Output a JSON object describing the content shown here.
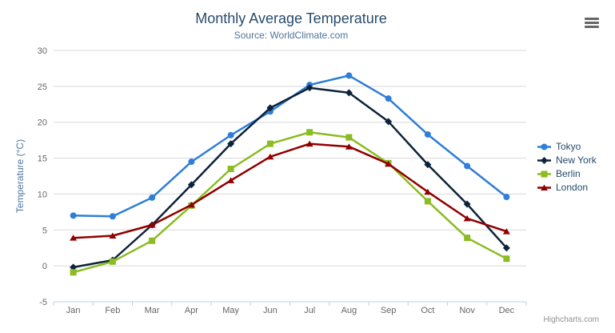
{
  "header": {
    "title": "Monthly Average Temperature",
    "subtitle": "Source: WorldClimate.com"
  },
  "credits": {
    "label": "Highcharts.com"
  },
  "context_menu": {
    "icon": "hamburger-menu-icon"
  },
  "chart_data": {
    "type": "line",
    "title": "Monthly Average Temperature",
    "subtitle": "Source: WorldClimate.com",
    "categories": [
      "Jan",
      "Feb",
      "Mar",
      "Apr",
      "May",
      "Jun",
      "Jul",
      "Aug",
      "Sep",
      "Oct",
      "Nov",
      "Dec"
    ],
    "series": [
      {
        "name": "Tokyo",
        "color": "#2f7ed8",
        "marker": "circle",
        "values": [
          7.0,
          6.9,
          9.5,
          14.5,
          18.2,
          21.5,
          25.2,
          26.5,
          23.3,
          18.3,
          13.9,
          9.6
        ]
      },
      {
        "name": "New York",
        "color": "#0d233a",
        "marker": "diamond",
        "values": [
          -0.2,
          0.8,
          5.7,
          11.3,
          17.0,
          22.0,
          24.8,
          24.1,
          20.1,
          14.1,
          8.6,
          2.5
        ]
      },
      {
        "name": "Berlin",
        "color": "#8bbc21",
        "marker": "square",
        "values": [
          -0.9,
          0.6,
          3.5,
          8.4,
          13.5,
          17.0,
          18.6,
          17.9,
          14.3,
          9.0,
          3.9,
          1.0
        ]
      },
      {
        "name": "London",
        "color": "#910000",
        "marker": "triangle",
        "values": [
          3.9,
          4.2,
          5.7,
          8.5,
          11.9,
          15.2,
          17.0,
          16.6,
          14.2,
          10.3,
          6.6,
          4.8
        ]
      }
    ],
    "xlabel": "",
    "ylabel": "Temperature (°C)",
    "ylim": [
      -5,
      30
    ],
    "yticks": [
      -5,
      0,
      5,
      10,
      15,
      20,
      25,
      30
    ],
    "grid": true,
    "legend_position": "right",
    "colors": {
      "grid_line": "#d8d8d8",
      "axis_line": "#c0d0e0",
      "axis_label": "#666666",
      "title": "#274b6d",
      "subtitle": "#4d759e",
      "legend_text": "#274b6d",
      "credits_text": "#909090"
    }
  }
}
